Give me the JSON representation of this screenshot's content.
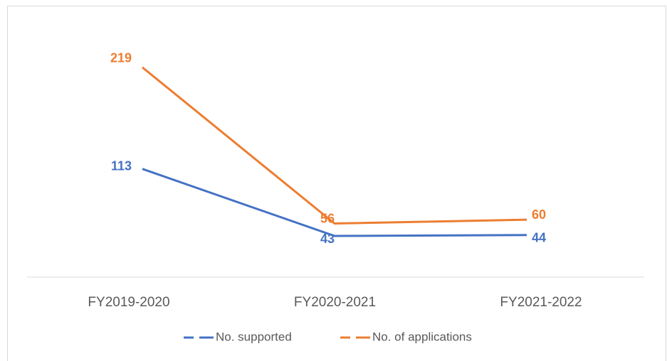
{
  "chart_data": {
    "type": "line",
    "categories": [
      "FY2019-2020",
      "FY2020-2021",
      "FY2021-2022"
    ],
    "series": [
      {
        "name": "No. supported",
        "color": "#4472c4",
        "values": [
          113,
          43,
          44
        ]
      },
      {
        "name": "No. of applications",
        "color": "#ed7d31",
        "values": [
          219,
          56,
          60
        ]
      }
    ],
    "ylim": [
      0,
      250
    ],
    "legend": "bottom"
  }
}
